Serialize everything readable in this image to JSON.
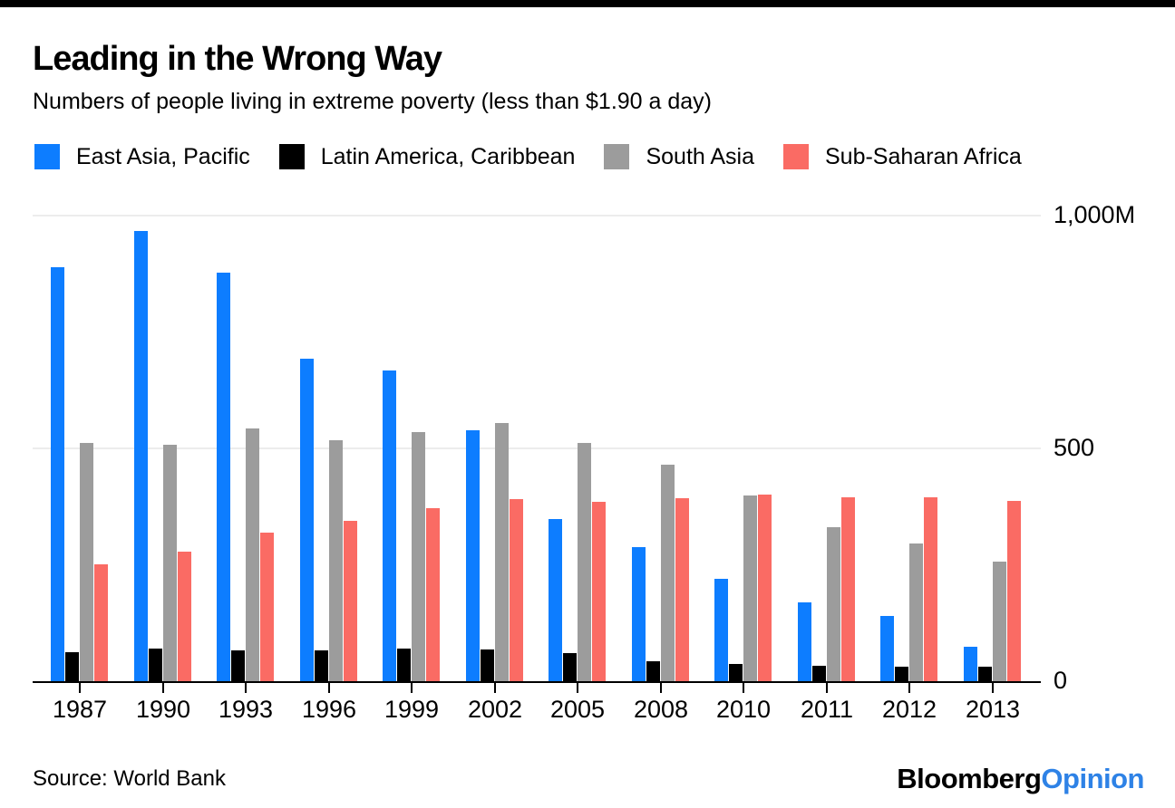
{
  "page": {
    "title": "Leading in the Wrong Way",
    "subtitle": "Numbers of people living in extreme poverty (less than $1.90 a day)"
  },
  "chart_data": {
    "type": "bar",
    "title": "Leading in the Wrong Way",
    "subtitle": "Numbers of people living in extreme poverty (less than $1.90 a day)",
    "unit": "millions of people",
    "categories": [
      "1987",
      "1990",
      "1993",
      "1996",
      "1999",
      "2002",
      "2005",
      "2008",
      "2010",
      "2011",
      "2012",
      "2013"
    ],
    "series": [
      {
        "name": "East Asia, Pacific",
        "color": "#0d7dff",
        "values": [
          890,
          966,
          878,
          693,
          668,
          538,
          349,
          288,
          219,
          169,
          141,
          73
        ]
      },
      {
        "name": "Latin America, Caribbean",
        "color": "#000000",
        "values": [
          62,
          70,
          67,
          67,
          70,
          68,
          61,
          42,
          37,
          34,
          32,
          31
        ]
      },
      {
        "name": "South Asia",
        "color": "#9c9c9c",
        "values": [
          511,
          507,
          542,
          517,
          535,
          554,
          512,
          465,
          399,
          330,
          295,
          257
        ]
      },
      {
        "name": "Sub-Saharan Africa",
        "color": "#fa6b64",
        "values": [
          250,
          278,
          320,
          345,
          371,
          391,
          386,
          393,
          401,
          395,
          394,
          388
        ]
      }
    ],
    "ylim": [
      0,
      1000
    ],
    "yticks": [
      {
        "value": 1000,
        "label": "1,000M"
      },
      {
        "value": 500,
        "label": "500"
      },
      {
        "value": 0,
        "label": "0"
      }
    ],
    "grid": "horizontal",
    "legend_position": "top"
  },
  "footer": {
    "source": "Source: World Bank",
    "logo": {
      "black": "Bloomberg",
      "blue": "Opinion",
      "blue_color": "#2e82e6"
    }
  }
}
